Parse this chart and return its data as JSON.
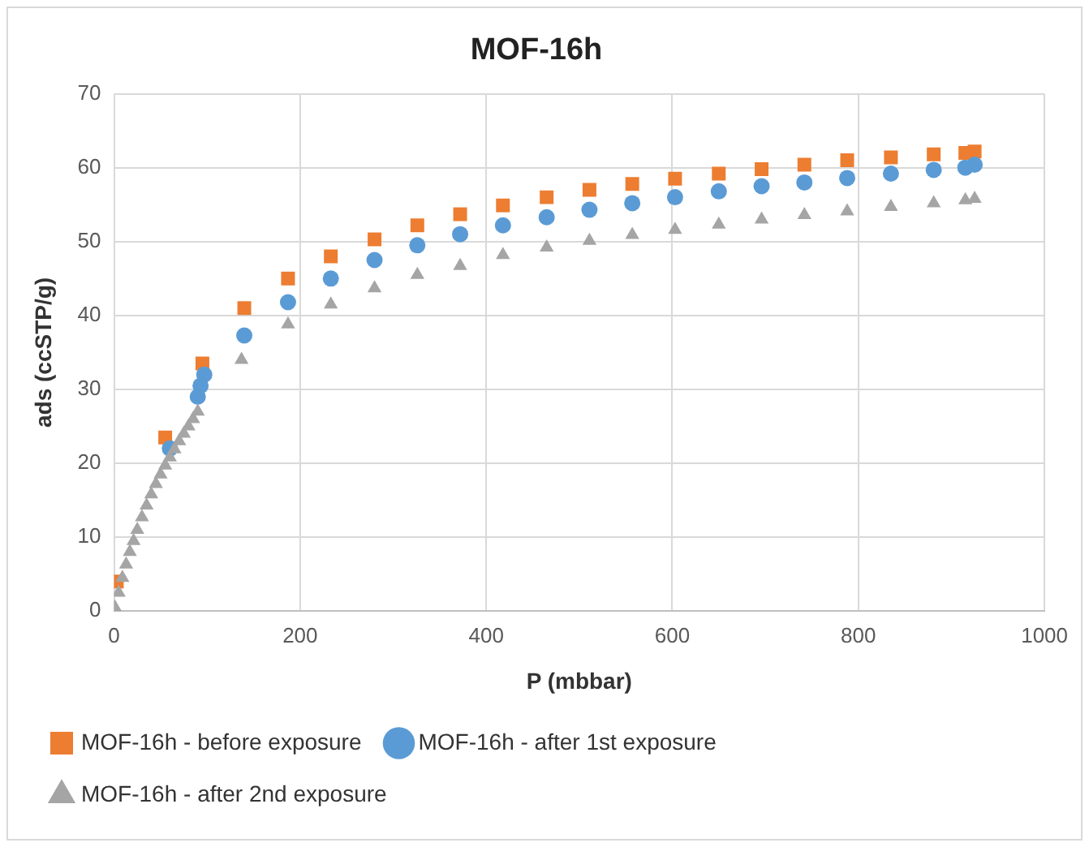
{
  "chart_data": {
    "type": "scatter",
    "title": "MOF-16h",
    "xlabel": "P (mbbar)",
    "ylabel": "ads (ccSTP/g)",
    "xlim": [
      0,
      1000
    ],
    "xticks": [
      0,
      200,
      400,
      600,
      800,
      1000
    ],
    "ylim": [
      0,
      70
    ],
    "yticks": [
      0,
      10,
      20,
      30,
      40,
      50,
      60,
      70
    ],
    "grid": true,
    "legend": "bottom",
    "series": [
      {
        "name": "MOF-16h - before exposure",
        "color": "#ed7d31",
        "marker": "square",
        "x": [
          3,
          55,
          95,
          140,
          187,
          233,
          280,
          326,
          372,
          418,
          465,
          511,
          557,
          603,
          650,
          696,
          742,
          788,
          835,
          881,
          915,
          925
        ],
        "values": [
          4,
          23.5,
          33.5,
          41,
          45,
          48,
          50.3,
          52.2,
          53.7,
          54.9,
          56,
          57,
          57.8,
          58.5,
          59.2,
          59.8,
          60.4,
          61,
          61.4,
          61.8,
          62,
          62.2
        ]
      },
      {
        "name": "MOF-16h - after 1st exposure",
        "color": "#5b9bd5",
        "marker": "circle",
        "x": [
          60,
          90,
          93,
          97,
          140,
          187,
          233,
          280,
          326,
          372,
          418,
          465,
          511,
          557,
          603,
          650,
          696,
          742,
          788,
          835,
          881,
          915,
          925
        ],
        "values": [
          22,
          29,
          30.5,
          32,
          37.3,
          41.8,
          45,
          47.5,
          49.5,
          51,
          52.2,
          53.3,
          54.3,
          55.2,
          56,
          56.8,
          57.5,
          58,
          58.6,
          59.2,
          59.7,
          60,
          60.4
        ]
      },
      {
        "name": "MOF-16h - after 2nd exposure",
        "color": "#a5a5a5",
        "marker": "triangle",
        "x": [
          1,
          5,
          9,
          13,
          17,
          21,
          25,
          30,
          35,
          40,
          45,
          50,
          55,
          60,
          65,
          70,
          75,
          80,
          85,
          90,
          137,
          187,
          233,
          280,
          326,
          372,
          418,
          465,
          511,
          557,
          603,
          650,
          696,
          742,
          788,
          835,
          881,
          915,
          925
        ],
        "values": [
          0.5,
          2.5,
          4.5,
          6.3,
          8,
          9.5,
          11,
          12.7,
          14.3,
          15.8,
          17.2,
          18.5,
          19.7,
          20.8,
          21.9,
          23,
          24,
          25,
          26,
          27,
          34,
          38.8,
          41.5,
          43.7,
          45.5,
          46.7,
          48.2,
          49.2,
          50.1,
          50.9,
          51.6,
          52.3,
          53,
          53.6,
          54.1,
          54.7,
          55.2,
          55.6,
          55.8
        ]
      }
    ]
  }
}
